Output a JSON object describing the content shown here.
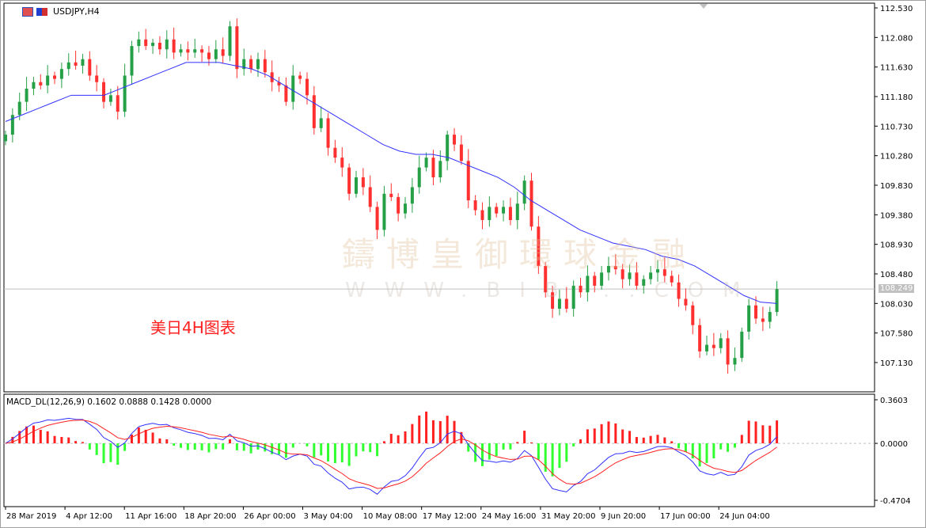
{
  "window": {
    "title": "USDJPY,H4",
    "icons": [
      "chart-properties-icon",
      "template-icon"
    ]
  },
  "annotation": "美日4H图表",
  "watermark": {
    "line1": "鑄博皇御環球金融",
    "line2": "WWW.BIB...COM"
  },
  "colors": {
    "bull": "#26a047",
    "bear": "#ff3030",
    "ma": "#3030ff",
    "macd_line": "#3030ff",
    "signal_line": "#ff2020",
    "hist_pos": "#ff2020",
    "hist_neg": "#30ff30"
  },
  "chart_data": [
    {
      "type": "candlestick",
      "symbol": "USDJPY",
      "timeframe": "H4",
      "ylim": [
        107.13,
        112.53
      ],
      "yticks": [
        "112.530",
        "112.080",
        "111.630",
        "111.180",
        "110.730",
        "110.280",
        "109.830",
        "109.380",
        "108.930",
        "108.480",
        "108.030",
        "107.580",
        "107.130"
      ],
      "current_price": "108.249",
      "xticks": [
        "28 Mar 2019",
        "4 Apr 12:00",
        "11 Apr 16:00",
        "18 Apr 20:00",
        "26 Apr 00:00",
        "3 May 04:00",
        "10 May 08:00",
        "17 May 12:00",
        "24 May 16:00",
        "31 May 20:00",
        "9 Jun 20:00",
        "17 Jun 00:00",
        "24 Jun 04:00"
      ],
      "close": [
        110.6,
        110.9,
        111.1,
        111.3,
        111.4,
        111.35,
        111.5,
        111.45,
        111.6,
        111.7,
        111.65,
        111.75,
        111.5,
        111.4,
        111.1,
        111.2,
        110.95,
        111.5,
        111.95,
        112.05,
        111.95,
        112.0,
        111.9,
        112.05,
        111.85,
        111.9,
        111.85,
        111.9,
        111.85,
        111.75,
        111.9,
        111.8,
        112.25,
        111.6,
        111.75,
        111.6,
        111.75,
        111.55,
        111.4,
        111.35,
        111.1,
        111.5,
        111.45,
        111.2,
        110.7,
        110.85,
        110.4,
        110.25,
        110.1,
        109.7,
        109.95,
        109.8,
        109.5,
        109.15,
        109.7,
        109.65,
        109.4,
        109.55,
        109.8,
        110.1,
        110.25,
        109.95,
        110.2,
        110.6,
        110.45,
        110.2,
        109.6,
        109.45,
        109.3,
        109.5,
        109.4,
        109.5,
        109.3,
        109.55,
        109.9,
        109.2,
        108.6,
        108.2,
        107.95,
        108.1,
        107.95,
        108.3,
        108.2,
        108.45,
        108.3,
        108.5,
        108.6,
        108.55,
        108.4,
        108.5,
        108.3,
        108.4,
        108.5,
        108.55,
        108.45,
        108.35,
        108.1,
        108.0,
        107.7,
        107.3,
        107.4,
        107.35,
        107.5,
        107.1,
        107.2,
        107.6,
        108.0,
        107.8,
        107.75,
        107.9,
        108.25
      ],
      "moving_average": [
        110.8,
        110.9,
        111.0,
        111.1,
        111.2,
        111.2,
        111.2,
        111.3,
        111.4,
        111.5,
        111.6,
        111.7,
        111.7,
        111.7,
        111.65,
        111.6,
        111.5,
        111.35,
        111.2,
        111.05,
        110.9,
        110.75,
        110.6,
        110.45,
        110.35,
        110.3,
        110.3,
        110.25,
        110.15,
        110.05,
        109.95,
        109.8,
        109.6,
        109.45,
        109.3,
        109.15,
        109.05,
        108.95,
        108.9,
        108.85,
        108.75,
        108.7,
        108.6,
        108.45,
        108.3,
        108.15,
        108.05,
        108.03
      ]
    },
    {
      "type": "macd",
      "label": "MACD_DL(12,26,9) 0.1602 0.0888 0.1428 0.0000",
      "ylim": [
        -0.4704,
        0.3603
      ],
      "yticks": [
        "0.3603",
        "0.0000",
        "-0.4704"
      ]
    }
  ]
}
